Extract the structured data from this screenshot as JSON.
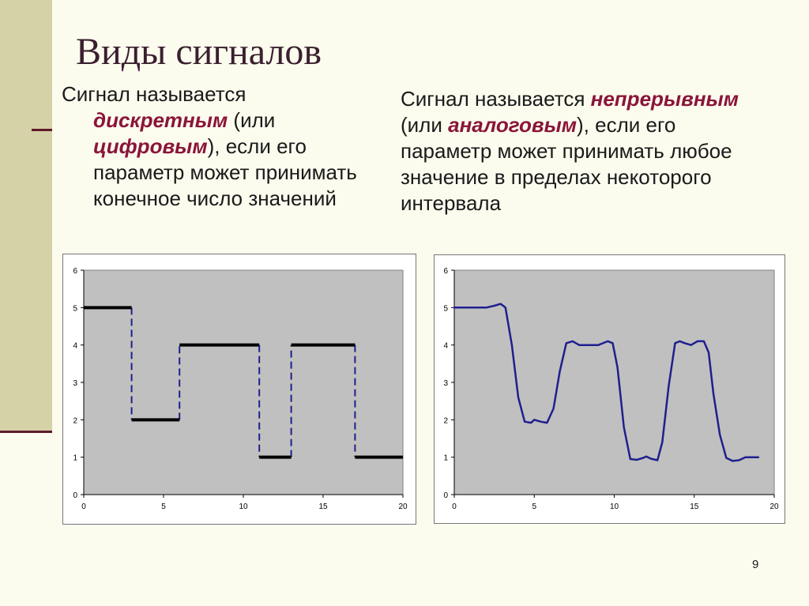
{
  "slide": {
    "title": "Виды сигналов",
    "page_number": "9",
    "colors": {
      "background": "#fbfbee",
      "band": "#d4d2a6",
      "accent": "#5e1a2a",
      "emphasis": "#8a1538"
    }
  },
  "left_text": {
    "line1": "Сигнал называется",
    "term1": "дискретным",
    "line2_rest": " (или",
    "term2": "цифровым",
    "line3_rest": "), если его",
    "line4": "параметр может принимать",
    "line5": "конечное число значений"
  },
  "right_text": {
    "line1_pre": "Сигнал называется ",
    "term1": "непрерывным",
    "line2_pre": "(или ",
    "term2": "аналоговым",
    "line2_rest": "), если его",
    "line3": "параметр может принимать любое",
    "line4": "значение в пределах некоторого",
    "line5": "интервала"
  },
  "chart_data": [
    {
      "type": "line",
      "style": "step",
      "xlim": [
        0,
        20
      ],
      "ylim": [
        0,
        6
      ],
      "xticks": [
        0,
        5,
        10,
        15,
        20
      ],
      "yticks": [
        0,
        1,
        2,
        3,
        4,
        5,
        6
      ],
      "grid": false,
      "plot_background": "#c0c0c0",
      "level_color": "#000000",
      "transition_color": "#1f1f8f",
      "segments": [
        {
          "x": [
            0,
            3
          ],
          "y": 5
        },
        {
          "x": [
            3,
            6
          ],
          "y": 2
        },
        {
          "x": [
            6,
            11
          ],
          "y": 4
        },
        {
          "x": [
            11,
            13
          ],
          "y": 1
        },
        {
          "x": [
            13,
            17
          ],
          "y": 4
        },
        {
          "x": [
            17,
            20
          ],
          "y": 1
        }
      ]
    },
    {
      "type": "line",
      "xlim": [
        0,
        20
      ],
      "ylim": [
        0,
        6
      ],
      "xticks": [
        0,
        5,
        10,
        15,
        20
      ],
      "yticks": [
        0,
        1,
        2,
        3,
        4,
        5,
        6
      ],
      "grid": false,
      "plot_background": "#c0c0c0",
      "line_color": "#1f1f8f",
      "x": [
        0,
        2,
        2.5,
        2.9,
        3.2,
        3.6,
        4.0,
        4.4,
        4.8,
        5.0,
        5.4,
        5.8,
        6.2,
        6.6,
        7.0,
        7.4,
        7.8,
        8.5,
        9.0,
        9.6,
        9.9,
        10.2,
        10.6,
        11.0,
        11.4,
        11.8,
        12.0,
        12.3,
        12.7,
        13.0,
        13.4,
        13.8,
        14.1,
        14.4,
        14.8,
        15.2,
        15.6,
        15.9,
        16.2,
        16.6,
        17.0,
        17.4,
        17.8,
        18.2,
        19.0
      ],
      "y": [
        5.0,
        5.0,
        5.05,
        5.1,
        5.0,
        4.0,
        2.6,
        1.95,
        1.92,
        2.0,
        1.95,
        1.92,
        2.3,
        3.3,
        4.05,
        4.1,
        4.0,
        4.0,
        4.0,
        4.1,
        4.05,
        3.4,
        1.8,
        0.95,
        0.93,
        0.98,
        1.02,
        0.96,
        0.92,
        1.4,
        2.9,
        4.05,
        4.1,
        4.05,
        4.0,
        4.1,
        4.1,
        3.8,
        2.7,
        1.6,
        0.98,
        0.9,
        0.92,
        1.0,
        1.0
      ]
    }
  ]
}
